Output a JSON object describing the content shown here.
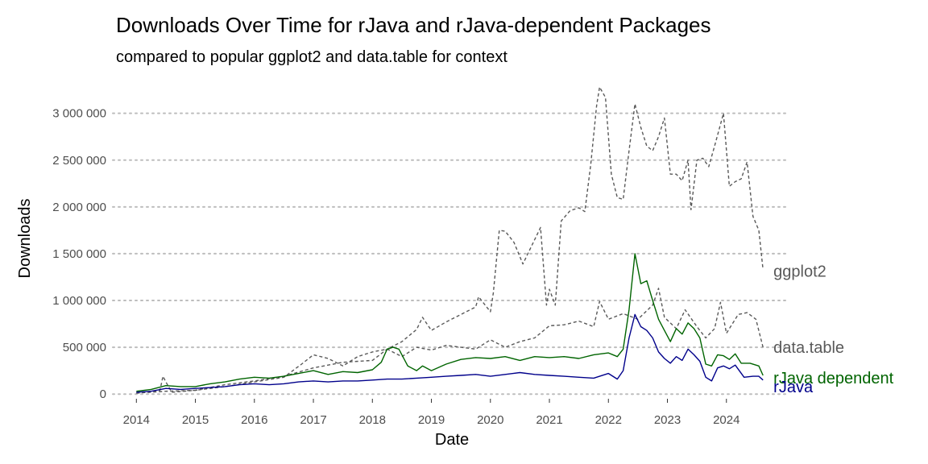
{
  "chart_data": {
    "type": "line",
    "title": "Downloads Over Time for rJava and rJava-dependent Packages",
    "subtitle": "compared to popular ggplot2 and data.table for context",
    "xlabel": "Date",
    "ylabel": "Downloads",
    "xlim": [
      2013.6,
      2025.0
    ],
    "ylim": [
      -50000,
      3350000
    ],
    "x_ticks": [
      2014,
      2015,
      2016,
      2017,
      2018,
      2019,
      2020,
      2021,
      2022,
      2023,
      2024
    ],
    "x_tick_labels": [
      "2014",
      "2015",
      "2016",
      "2017",
      "2018",
      "2019",
      "2020",
      "2021",
      "2022",
      "2023",
      "2024"
    ],
    "y_ticks": [
      0,
      500000,
      1000000,
      1500000,
      2000000,
      2500000,
      3000000
    ],
    "y_tick_labels": [
      "0",
      "500 000",
      "1 000 000",
      "1 500 000",
      "2 000 000",
      "2 500 000",
      "3 000 000"
    ],
    "grid": "horizontal dotted",
    "legend": "direct labels at right end of lines",
    "colors": {
      "ggplot2": "#595959",
      "data.table": "#595959",
      "rJava dependent": "#006400",
      "rJava": "#00008b",
      "grid": "#bdbdbd"
    },
    "series": [
      {
        "name": "ggplot2",
        "label": "ggplot2",
        "style": "dashed",
        "points": [
          [
            2014.0,
            10000
          ],
          [
            2014.4,
            40000
          ],
          [
            2014.45,
            190000
          ],
          [
            2014.5,
            130000
          ],
          [
            2014.6,
            20000
          ],
          [
            2015.0,
            40000
          ],
          [
            2015.5,
            100000
          ],
          [
            2016.0,
            140000
          ],
          [
            2016.5,
            190000
          ],
          [
            2017.0,
            280000
          ],
          [
            2017.5,
            340000
          ],
          [
            2018.0,
            360000
          ],
          [
            2018.25,
            480000
          ],
          [
            2018.5,
            560000
          ],
          [
            2018.75,
            690000
          ],
          [
            2018.85,
            820000
          ],
          [
            2019.0,
            680000
          ],
          [
            2019.25,
            770000
          ],
          [
            2019.5,
            850000
          ],
          [
            2019.75,
            930000
          ],
          [
            2019.8,
            1040000
          ],
          [
            2020.0,
            880000
          ],
          [
            2020.05,
            1080000
          ],
          [
            2020.15,
            1750000
          ],
          [
            2020.25,
            1740000
          ],
          [
            2020.4,
            1620000
          ],
          [
            2020.55,
            1390000
          ],
          [
            2020.75,
            1650000
          ],
          [
            2020.85,
            1780000
          ],
          [
            2020.95,
            950000
          ],
          [
            2021.0,
            1120000
          ],
          [
            2021.1,
            950000
          ],
          [
            2021.2,
            1850000
          ],
          [
            2021.35,
            1960000
          ],
          [
            2021.5,
            1990000
          ],
          [
            2021.6,
            1950000
          ],
          [
            2021.7,
            2450000
          ],
          [
            2021.8,
            3080000
          ],
          [
            2021.85,
            3280000
          ],
          [
            2021.95,
            3170000
          ],
          [
            2022.05,
            2350000
          ],
          [
            2022.15,
            2100000
          ],
          [
            2022.25,
            2080000
          ],
          [
            2022.35,
            2600000
          ],
          [
            2022.45,
            3100000
          ],
          [
            2022.55,
            2850000
          ],
          [
            2022.65,
            2650000
          ],
          [
            2022.75,
            2600000
          ],
          [
            2022.85,
            2750000
          ],
          [
            2022.95,
            2950000
          ],
          [
            2023.05,
            2350000
          ],
          [
            2023.15,
            2350000
          ],
          [
            2023.25,
            2280000
          ],
          [
            2023.35,
            2500000
          ],
          [
            2023.4,
            1970000
          ],
          [
            2023.5,
            2500000
          ],
          [
            2023.6,
            2520000
          ],
          [
            2023.7,
            2430000
          ],
          [
            2023.8,
            2650000
          ],
          [
            2023.95,
            3000000
          ],
          [
            2024.05,
            2220000
          ],
          [
            2024.15,
            2270000
          ],
          [
            2024.25,
            2300000
          ],
          [
            2024.35,
            2480000
          ],
          [
            2024.45,
            1900000
          ],
          [
            2024.55,
            1750000
          ],
          [
            2024.62,
            1330000
          ]
        ]
      },
      {
        "name": "data.table",
        "label": "data.table",
        "style": "dashed",
        "points": [
          [
            2014.0,
            10000
          ],
          [
            2014.5,
            30000
          ],
          [
            2015.0,
            40000
          ],
          [
            2015.5,
            80000
          ],
          [
            2016.0,
            130000
          ],
          [
            2016.5,
            180000
          ],
          [
            2016.8,
            320000
          ],
          [
            2017.0,
            420000
          ],
          [
            2017.25,
            380000
          ],
          [
            2017.5,
            300000
          ],
          [
            2017.75,
            400000
          ],
          [
            2018.0,
            450000
          ],
          [
            2018.25,
            480000
          ],
          [
            2018.5,
            400000
          ],
          [
            2018.75,
            500000
          ],
          [
            2019.0,
            470000
          ],
          [
            2019.25,
            520000
          ],
          [
            2019.5,
            500000
          ],
          [
            2019.75,
            480000
          ],
          [
            2020.0,
            580000
          ],
          [
            2020.25,
            500000
          ],
          [
            2020.5,
            560000
          ],
          [
            2020.75,
            600000
          ],
          [
            2021.0,
            730000
          ],
          [
            2021.25,
            740000
          ],
          [
            2021.5,
            780000
          ],
          [
            2021.75,
            720000
          ],
          [
            2021.85,
            990000
          ],
          [
            2022.0,
            800000
          ],
          [
            2022.25,
            860000
          ],
          [
            2022.5,
            800000
          ],
          [
            2022.75,
            950000
          ],
          [
            2022.85,
            1130000
          ],
          [
            2022.95,
            820000
          ],
          [
            2023.15,
            700000
          ],
          [
            2023.3,
            900000
          ],
          [
            2023.5,
            720000
          ],
          [
            2023.65,
            600000
          ],
          [
            2023.8,
            700000
          ],
          [
            2023.9,
            980000
          ],
          [
            2024.0,
            650000
          ],
          [
            2024.2,
            850000
          ],
          [
            2024.35,
            870000
          ],
          [
            2024.5,
            800000
          ],
          [
            2024.62,
            500000
          ]
        ]
      },
      {
        "name": "rJava dependent",
        "label": "rJava dependent",
        "style": "solid",
        "points": [
          [
            2014.0,
            30000
          ],
          [
            2014.25,
            50000
          ],
          [
            2014.5,
            90000
          ],
          [
            2014.75,
            80000
          ],
          [
            2015.0,
            80000
          ],
          [
            2015.25,
            110000
          ],
          [
            2015.5,
            130000
          ],
          [
            2015.75,
            160000
          ],
          [
            2016.0,
            180000
          ],
          [
            2016.25,
            170000
          ],
          [
            2016.5,
            190000
          ],
          [
            2016.75,
            220000
          ],
          [
            2017.0,
            250000
          ],
          [
            2017.25,
            210000
          ],
          [
            2017.5,
            240000
          ],
          [
            2017.75,
            230000
          ],
          [
            2018.0,
            260000
          ],
          [
            2018.15,
            340000
          ],
          [
            2018.25,
            480000
          ],
          [
            2018.35,
            500000
          ],
          [
            2018.45,
            480000
          ],
          [
            2018.6,
            300000
          ],
          [
            2018.75,
            250000
          ],
          [
            2018.85,
            300000
          ],
          [
            2019.0,
            250000
          ],
          [
            2019.25,
            320000
          ],
          [
            2019.5,
            370000
          ],
          [
            2019.75,
            390000
          ],
          [
            2020.0,
            380000
          ],
          [
            2020.25,
            400000
          ],
          [
            2020.5,
            360000
          ],
          [
            2020.75,
            400000
          ],
          [
            2021.0,
            390000
          ],
          [
            2021.25,
            400000
          ],
          [
            2021.5,
            380000
          ],
          [
            2021.75,
            420000
          ],
          [
            2022.0,
            440000
          ],
          [
            2022.15,
            400000
          ],
          [
            2022.25,
            480000
          ],
          [
            2022.35,
            900000
          ],
          [
            2022.45,
            1500000
          ],
          [
            2022.55,
            1180000
          ],
          [
            2022.65,
            1210000
          ],
          [
            2022.75,
            1000000
          ],
          [
            2022.85,
            800000
          ],
          [
            2022.95,
            680000
          ],
          [
            2023.05,
            560000
          ],
          [
            2023.15,
            700000
          ],
          [
            2023.25,
            640000
          ],
          [
            2023.35,
            760000
          ],
          [
            2023.45,
            700000
          ],
          [
            2023.55,
            600000
          ],
          [
            2023.65,
            320000
          ],
          [
            2023.75,
            300000
          ],
          [
            2023.85,
            420000
          ],
          [
            2023.95,
            410000
          ],
          [
            2024.05,
            370000
          ],
          [
            2024.15,
            430000
          ],
          [
            2024.25,
            330000
          ],
          [
            2024.4,
            330000
          ],
          [
            2024.55,
            300000
          ],
          [
            2024.62,
            200000
          ]
        ]
      },
      {
        "name": "rJava",
        "label": "rJava",
        "style": "solid",
        "points": [
          [
            2014.0,
            20000
          ],
          [
            2014.25,
            30000
          ],
          [
            2014.5,
            60000
          ],
          [
            2014.75,
            50000
          ],
          [
            2015.0,
            60000
          ],
          [
            2015.25,
            70000
          ],
          [
            2015.5,
            80000
          ],
          [
            2015.75,
            100000
          ],
          [
            2016.0,
            110000
          ],
          [
            2016.25,
            100000
          ],
          [
            2016.5,
            110000
          ],
          [
            2016.75,
            130000
          ],
          [
            2017.0,
            140000
          ],
          [
            2017.25,
            130000
          ],
          [
            2017.5,
            140000
          ],
          [
            2017.75,
            140000
          ],
          [
            2018.0,
            150000
          ],
          [
            2018.25,
            160000
          ],
          [
            2018.5,
            160000
          ],
          [
            2018.75,
            170000
          ],
          [
            2019.0,
            180000
          ],
          [
            2019.25,
            190000
          ],
          [
            2019.5,
            200000
          ],
          [
            2019.75,
            210000
          ],
          [
            2020.0,
            190000
          ],
          [
            2020.25,
            210000
          ],
          [
            2020.5,
            230000
          ],
          [
            2020.75,
            210000
          ],
          [
            2021.0,
            200000
          ],
          [
            2021.25,
            190000
          ],
          [
            2021.5,
            180000
          ],
          [
            2021.75,
            170000
          ],
          [
            2022.0,
            220000
          ],
          [
            2022.15,
            160000
          ],
          [
            2022.25,
            250000
          ],
          [
            2022.35,
            600000
          ],
          [
            2022.45,
            850000
          ],
          [
            2022.55,
            720000
          ],
          [
            2022.65,
            680000
          ],
          [
            2022.75,
            600000
          ],
          [
            2022.85,
            450000
          ],
          [
            2022.95,
            380000
          ],
          [
            2023.05,
            330000
          ],
          [
            2023.15,
            400000
          ],
          [
            2023.25,
            360000
          ],
          [
            2023.35,
            480000
          ],
          [
            2023.45,
            420000
          ],
          [
            2023.55,
            350000
          ],
          [
            2023.65,
            180000
          ],
          [
            2023.75,
            140000
          ],
          [
            2023.85,
            280000
          ],
          [
            2023.95,
            300000
          ],
          [
            2024.05,
            270000
          ],
          [
            2024.15,
            310000
          ],
          [
            2024.3,
            180000
          ],
          [
            2024.45,
            190000
          ],
          [
            2024.55,
            190000
          ],
          [
            2024.62,
            150000
          ]
        ]
      }
    ]
  }
}
